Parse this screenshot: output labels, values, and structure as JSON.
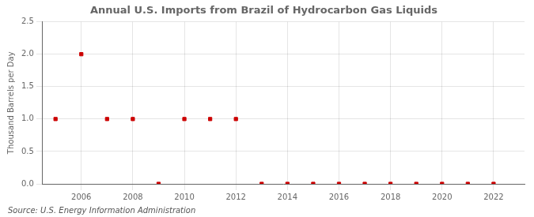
{
  "chart_data": {
    "type": "scatter",
    "title": "Annual U.S. Imports from Brazil of Hydrocarbon Gas Liquids",
    "y_label": "Thousand Barrels per Day",
    "annotations": [
      "Source: U.S. Energy Information Administration"
    ],
    "x": [
      2005,
      2006,
      2007,
      2008,
      2009,
      2010,
      2011,
      2012,
      2013,
      2014,
      2015,
      2016,
      2017,
      2018,
      2019,
      2020,
      2021,
      2022
    ],
    "values": [
      1.0,
      2.0,
      1.0,
      1.0,
      0.0,
      1.0,
      1.0,
      1.0,
      0.0,
      0.0,
      0.0,
      0.0,
      0.0,
      0.0,
      0.0,
      0.0,
      0.0,
      0.0
    ],
    "color": "#cc0000",
    "marker": "square",
    "xlim": [
      2004.5,
      2023.2
    ],
    "xticks": [
      2006,
      2008,
      2010,
      2012,
      2014,
      2016,
      2018,
      2020,
      2022
    ],
    "ylim": [
      0.0,
      2.5
    ],
    "yticks": [
      {
        "value": 0.0,
        "label": "0.0"
      },
      0.5,
      {
        "value": 1.0,
        "label": "1.0"
      },
      1.5,
      {
        "value": 2.0,
        "label": "2.0"
      },
      2.5
    ],
    "grid": true
  }
}
